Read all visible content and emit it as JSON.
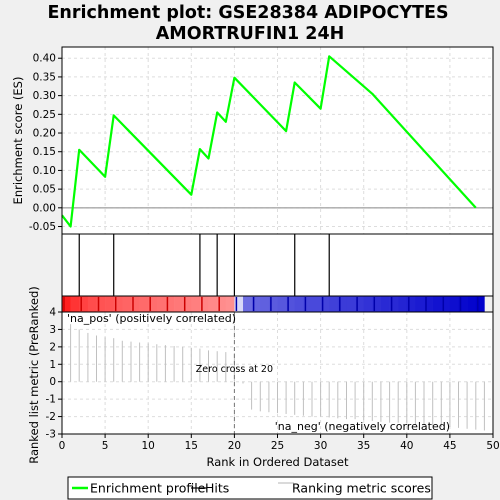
{
  "chart_data": {
    "title_line1": "Enrichment plot: GSE28384 ADIPOCYTES",
    "title_line2": "AMORTRUFIN1 24H",
    "top_panel": {
      "type": "line",
      "ylabel": "Enrichment score (ES)",
      "ylim": [
        -0.07,
        0.43
      ],
      "yticks": [
        "-0.05",
        "0.00",
        "0.05",
        "0.10",
        "0.15",
        "0.20",
        "0.25",
        "0.30",
        "0.35",
        "0.40"
      ],
      "series": [
        {
          "name": "Enrichment profile",
          "color": "#00ff00",
          "x": [
            0,
            1,
            2,
            5,
            6,
            15,
            16,
            17,
            18,
            19,
            20,
            26,
            27,
            30,
            31,
            36,
            48
          ],
          "y": [
            -0.02,
            -0.05,
            0.155,
            0.083,
            0.247,
            0.035,
            0.157,
            0.132,
            0.255,
            0.23,
            0.348,
            0.205,
            0.335,
            0.265,
            0.405,
            0.305,
            0.0
          ]
        }
      ]
    },
    "hits": {
      "name": "Hits",
      "x": [
        2,
        6,
        16,
        18,
        20,
        27,
        31
      ]
    },
    "bottom_panel": {
      "type": "bar",
      "xlabel": "Rank in Ordered Dataset",
      "ylabel": "Ranked list metric (PreRanked)",
      "ylim": [
        -3,
        4
      ],
      "yticks": [
        "-3",
        "-2",
        "-1",
        "0",
        "1",
        "2",
        "3",
        "4"
      ],
      "xticks": [
        "0",
        "5",
        "10",
        "15",
        "20",
        "25",
        "30",
        "35",
        "40",
        "45",
        "50"
      ],
      "xlim": [
        0,
        50
      ],
      "series_name": "Ranking metric scores",
      "x": [
        0,
        1,
        2,
        3,
        4,
        5,
        6,
        7,
        8,
        9,
        10,
        11,
        12,
        13,
        14,
        15,
        16,
        17,
        18,
        19,
        20,
        21,
        22,
        23,
        24,
        25,
        26,
        27,
        28,
        29,
        30,
        31,
        32,
        33,
        34,
        35,
        36,
        37,
        38,
        39,
        40,
        41,
        42,
        43,
        44,
        45,
        46,
        47,
        48
      ],
      "values": [
        3.3,
        3.0,
        2.8,
        2.65,
        2.55,
        2.5,
        2.35,
        2.3,
        2.25,
        2.2,
        2.15,
        2.1,
        2.05,
        2.0,
        1.95,
        1.9,
        1.8,
        1.75,
        1.7,
        1.65,
        -0.1,
        -1.6,
        -1.7,
        -1.75,
        -1.8,
        -1.85,
        -1.9,
        -1.95,
        -2.0,
        -2.0,
        -2.05,
        -2.1,
        -2.15,
        -2.15,
        -2.2,
        -2.25,
        -2.3,
        -2.35,
        -2.35,
        -2.4,
        -2.45,
        -2.5,
        -2.55,
        -2.6,
        -2.6,
        -2.65,
        -2.7,
        -2.75,
        -2.8
      ],
      "zero_cross": 20,
      "zero_cross_label": "Zero cross at 20",
      "pos_label": "'na_pos' (positively correlated)",
      "neg_label": "'na_neg' (negatively correlated)",
      "pos_color": "#cc0000",
      "neg_color": "#0000cc"
    },
    "legend": {
      "placement": "bottom",
      "items": [
        {
          "label": "Enrichment profile",
          "color": "#00ff00"
        },
        {
          "label": "Hits",
          "color": "#000000"
        },
        {
          "label": "Ranking metric scores",
          "color": "#c0c0c0"
        }
      ]
    },
    "grid": true
  }
}
